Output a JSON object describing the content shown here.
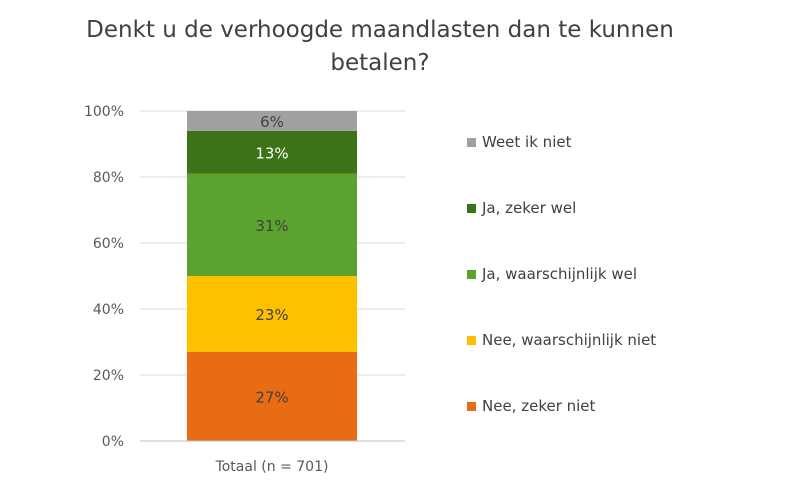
{
  "chart_data": {
    "type": "bar",
    "stacked": true,
    "title": "Denkt u de verhoogde maandlasten dan te kunnen betalen?",
    "title_lines": [
      "Denkt u de verhoogde maandlasten dan te kunnen",
      "betalen?"
    ],
    "categories": [
      "Totaal (n = 701)"
    ],
    "ylim": [
      0,
      100
    ],
    "yticks": [
      0,
      20,
      40,
      60,
      80,
      100
    ],
    "ytick_labels": [
      "0%",
      "20%",
      "40%",
      "60%",
      "80%",
      "100%"
    ],
    "grid": true,
    "legend_position": "right",
    "series": [
      {
        "name": "Nee, zeker niet",
        "values": [
          27
        ],
        "label": "27%",
        "color": "#E86C14"
      },
      {
        "name": "Nee, waarschijnlijk niet",
        "values": [
          23
        ],
        "label": "23%",
        "color": "#FFC000"
      },
      {
        "name": "Ja, waarschijnlijk wel",
        "values": [
          31
        ],
        "label": "31%",
        "color": "#5BA32E"
      },
      {
        "name": "Ja, zeker wel",
        "values": [
          13
        ],
        "label": "13%",
        "color": "#3D7318"
      },
      {
        "name": "Weet ik niet",
        "values": [
          6
        ],
        "label": "6%",
        "color": "#A0A0A0"
      }
    ]
  }
}
